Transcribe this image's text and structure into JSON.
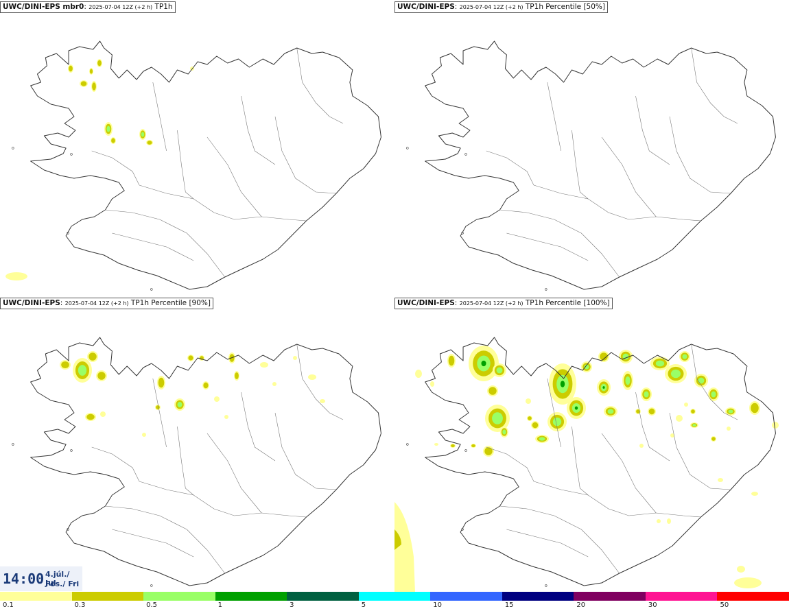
{
  "panels": [
    {
      "model": "UWC/DINI-EPS mbr0",
      "run": "2025-07-04 12Z (+2 h)",
      "field": "TP1h"
    },
    {
      "model": "UWC/DINI-EPS",
      "run": "2025-07-04 12Z (+2 h)",
      "field": "TP1h Percentile [50%]"
    },
    {
      "model": "UWC/DINI-EPS",
      "run": "2025-07-04 12Z (+2 h)",
      "field": "TP1h Percentile [90%]"
    },
    {
      "model": "UWC/DINI-EPS",
      "run": "2025-07-04 12Z (+2 h)",
      "field": "TP1h Percentile [100%]"
    }
  ],
  "valid_time": {
    "time": "14:00",
    "date_line1": "4.júl./ Jul",
    "date_line2": "Fös./ Fri"
  },
  "legend": {
    "colors": [
      "#ffff99",
      "#cccc00",
      "#99ff66",
      "#00a000",
      "#006040",
      "#00ffff",
      "#3366ff",
      "#000080",
      "#800060",
      "#ff1493",
      "#ff0000"
    ],
    "ticks": [
      "0.1",
      "0.3",
      "0.5",
      "1",
      "3",
      "5",
      "10",
      "15",
      "20",
      "30",
      "50"
    ]
  }
}
